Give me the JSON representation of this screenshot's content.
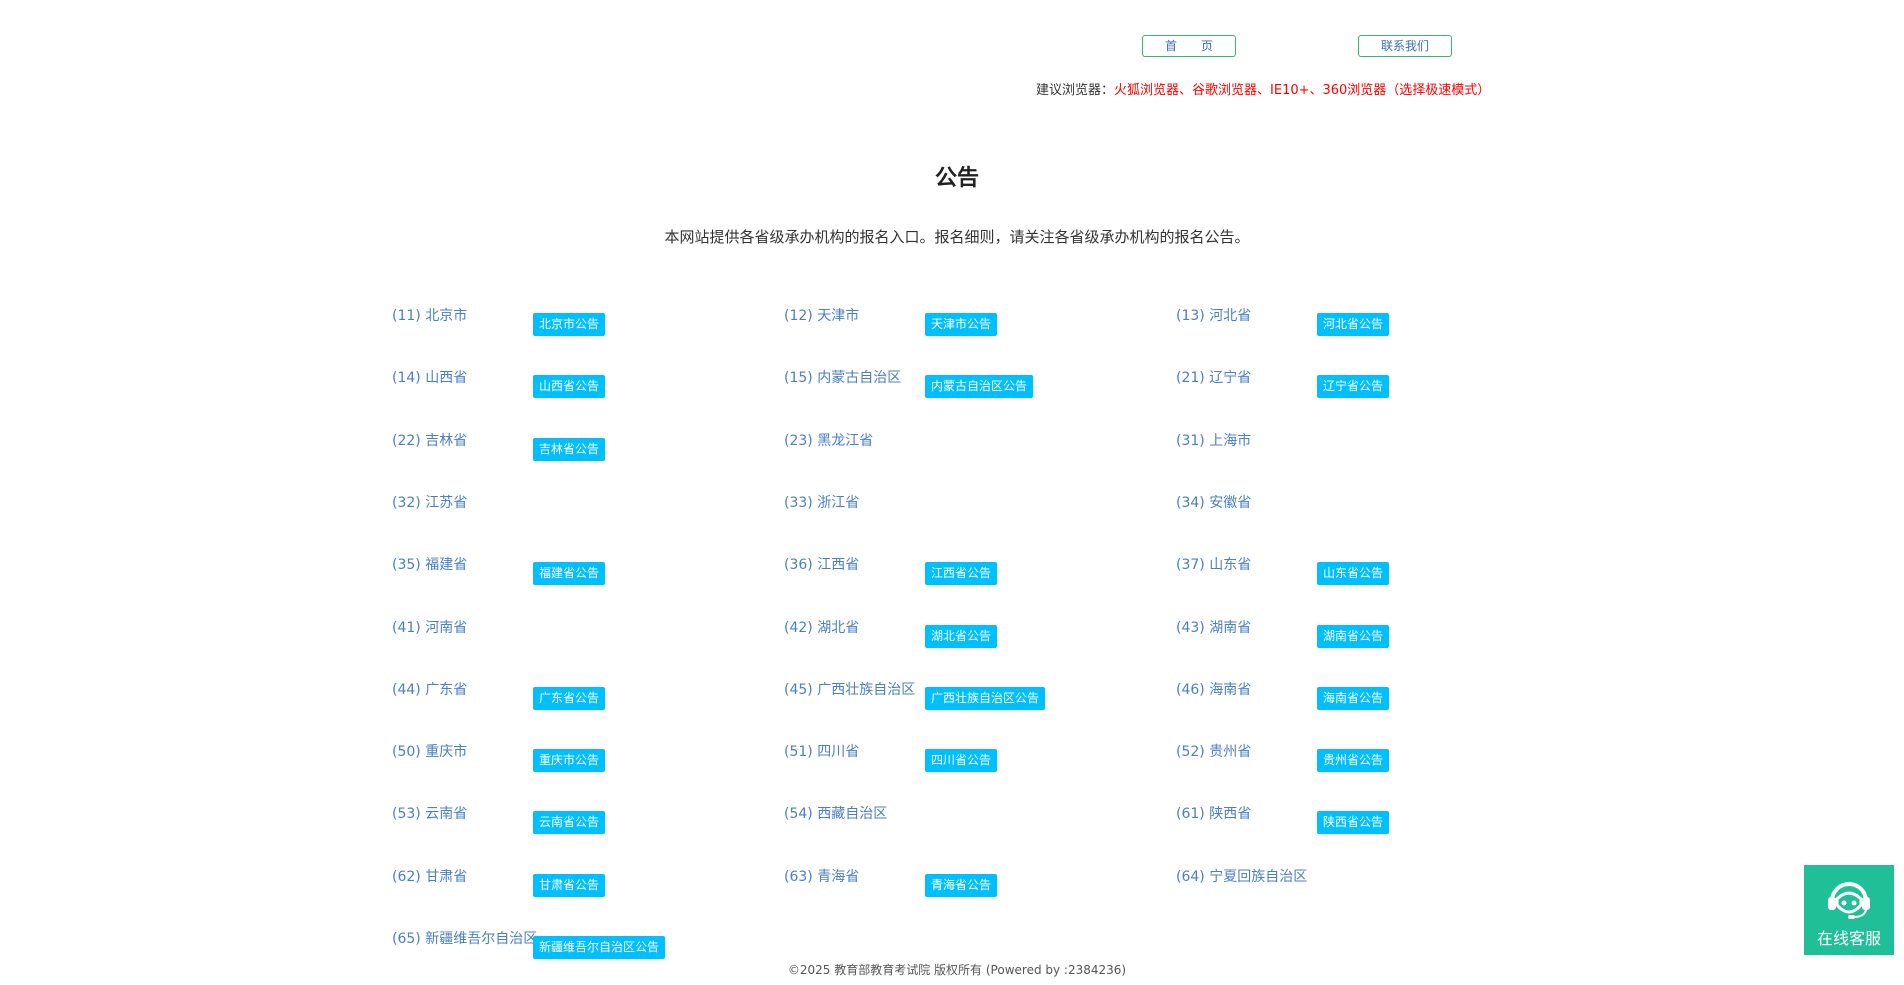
{
  "nav": {
    "home": "首　　页",
    "contact": "联系我们"
  },
  "browser": {
    "label": "建议浏览器：",
    "value": "火狐浏览器、谷歌浏览器、IE10+、360浏览器（选择极速模式）"
  },
  "title": "公告",
  "subtitle": "本网站提供各省级承办机构的报名入口。报名细则，请关注各省级承办机构的报名公告。",
  "entries": [
    {
      "label": "(11)  北京市",
      "badge": "北京市公告"
    },
    {
      "label": "(12)  天津市",
      "badge": "天津市公告"
    },
    {
      "label": "(13)  河北省",
      "badge": "河北省公告"
    },
    {
      "label": "(14)  山西省",
      "badge": "山西省公告"
    },
    {
      "label": "(15)  内蒙古自治区",
      "badge": "内蒙古自治区公告"
    },
    {
      "label": "(21)  辽宁省",
      "badge": "辽宁省公告"
    },
    {
      "label": "(22)  吉林省",
      "badge": "吉林省公告"
    },
    {
      "label": "(23)  黑龙江省",
      "badge": null
    },
    {
      "label": "(31)  上海市",
      "badge": null
    },
    {
      "label": "(32)  江苏省",
      "badge": null
    },
    {
      "label": "(33)  浙江省",
      "badge": null
    },
    {
      "label": "(34)  安徽省",
      "badge": null
    },
    {
      "label": "(35)  福建省",
      "badge": "福建省公告"
    },
    {
      "label": "(36)  江西省",
      "badge": "江西省公告"
    },
    {
      "label": "(37)  山东省",
      "badge": "山东省公告"
    },
    {
      "label": "(41)  河南省",
      "badge": null
    },
    {
      "label": "(42)  湖北省",
      "badge": "湖北省公告"
    },
    {
      "label": "(43)  湖南省",
      "badge": "湖南省公告"
    },
    {
      "label": "(44)  广东省",
      "badge": "广东省公告"
    },
    {
      "label": "(45)  广西壮族自治区",
      "badge": "广西壮族自治区公告"
    },
    {
      "label": "(46)  海南省",
      "badge": "海南省公告"
    },
    {
      "label": "(50)  重庆市",
      "badge": "重庆市公告"
    },
    {
      "label": "(51)  四川省",
      "badge": "四川省公告"
    },
    {
      "label": "(52)  贵州省",
      "badge": "贵州省公告"
    },
    {
      "label": "(53)  云南省",
      "badge": "云南省公告"
    },
    {
      "label": "(54)  西藏自治区",
      "badge": null
    },
    {
      "label": "(61)  陕西省",
      "badge": "陕西省公告"
    },
    {
      "label": "(62)  甘肃省",
      "badge": "甘肃省公告"
    },
    {
      "label": "(63)  青海省",
      "badge": "青海省公告"
    },
    {
      "label": "(64)  宁夏回族自治区",
      "badge": null
    },
    {
      "label": "(65)  新疆维吾尔自治区",
      "badge": "新疆维吾尔自治区公告"
    }
  ],
  "footer": "©2025   教育部教育考试院   版权所有   (Powered by :2384236)",
  "chat": {
    "label": "在线客服",
    "icon": "headset-icon"
  },
  "colors": {
    "badge": "#00bfff",
    "label": "#4a7fc0",
    "chat": "#1fbf98",
    "nav_border": "#3cb371",
    "warning": "#ff0000"
  }
}
